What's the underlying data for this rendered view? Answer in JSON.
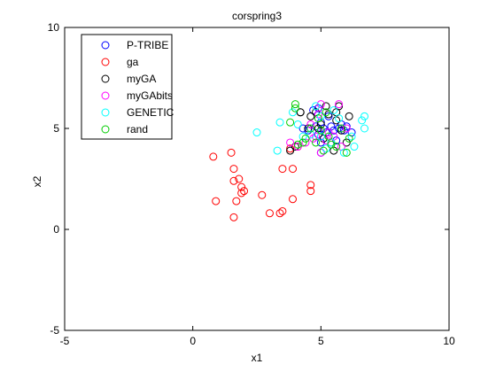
{
  "chart_data": {
    "type": "scatter",
    "title": "corspring3",
    "xlabel": "x1",
    "ylabel": "x2",
    "xlim": [
      -5,
      10
    ],
    "ylim": [
      -5,
      10
    ],
    "xticks": [
      -5,
      0,
      5,
      10
    ],
    "yticks": [
      -5,
      0,
      5,
      10
    ],
    "xtick_labels": [
      "-5",
      "0",
      "5",
      "10"
    ],
    "ytick_labels": [
      "-5",
      "0",
      "5",
      "10"
    ],
    "grid": false,
    "legend_position": "top-left",
    "marker": "circle",
    "series": [
      {
        "name": "P-TRIBE",
        "color": "#0000ff",
        "points": [
          [
            4.3,
            5.0
          ],
          [
            4.5,
            4.9
          ],
          [
            4.8,
            5.1
          ],
          [
            4.9,
            4.7
          ],
          [
            5.0,
            5.3
          ],
          [
            5.1,
            5.0
          ],
          [
            5.2,
            4.8
          ],
          [
            5.4,
            5.1
          ],
          [
            5.5,
            4.9
          ],
          [
            5.7,
            5.0
          ],
          [
            5.8,
            5.2
          ],
          [
            5.9,
            4.9
          ],
          [
            6.0,
            5.1
          ],
          [
            6.2,
            4.8
          ],
          [
            5.0,
            4.3
          ],
          [
            5.3,
            5.6
          ],
          [
            4.7,
            5.9
          ],
          [
            5.6,
            4.4
          ],
          [
            4.9,
            6.0
          ],
          [
            5.0,
            3.8
          ]
        ]
      },
      {
        "name": "ga",
        "color": "#ff0000",
        "points": [
          [
            0.8,
            3.6
          ],
          [
            0.9,
            1.4
          ],
          [
            1.5,
            3.8
          ],
          [
            1.6,
            3.0
          ],
          [
            1.6,
            2.4
          ],
          [
            1.7,
            1.4
          ],
          [
            1.6,
            0.6
          ],
          [
            1.8,
            2.5
          ],
          [
            1.9,
            2.1
          ],
          [
            1.9,
            1.8
          ],
          [
            2.0,
            1.9
          ],
          [
            2.7,
            1.7
          ],
          [
            3.0,
            0.8
          ],
          [
            3.4,
            0.8
          ],
          [
            3.5,
            0.9
          ],
          [
            3.5,
            3.0
          ],
          [
            3.9,
            1.5
          ],
          [
            3.9,
            3.0
          ],
          [
            4.6,
            2.2
          ],
          [
            4.6,
            1.9
          ],
          [
            4.1,
            4.1
          ],
          [
            3.8,
            4.0
          ]
        ]
      },
      {
        "name": "myGA",
        "color": "#000000",
        "points": [
          [
            3.8,
            3.9
          ],
          [
            4.0,
            4.1
          ],
          [
            4.2,
            5.8
          ],
          [
            4.6,
            5.6
          ],
          [
            4.8,
            5.8
          ],
          [
            4.9,
            5.0
          ],
          [
            5.1,
            4.5
          ],
          [
            5.2,
            6.1
          ],
          [
            5.3,
            5.7
          ],
          [
            5.4,
            4.3
          ],
          [
            5.5,
            3.9
          ],
          [
            5.6,
            5.4
          ],
          [
            5.6,
            5.8
          ],
          [
            5.7,
            6.1
          ],
          [
            5.8,
            4.9
          ],
          [
            6.0,
            4.3
          ],
          [
            6.1,
            5.6
          ],
          [
            4.2,
            5.8
          ],
          [
            4.5,
            5.0
          ],
          [
            5.0,
            5.2
          ]
        ]
      },
      {
        "name": "myGAbits",
        "color": "#ff00ff",
        "points": [
          [
            3.8,
            4.3
          ],
          [
            4.1,
            4.1
          ],
          [
            4.4,
            4.3
          ],
          [
            4.7,
            4.5
          ],
          [
            4.8,
            4.6
          ],
          [
            4.9,
            5.7
          ],
          [
            5.0,
            3.8
          ],
          [
            5.2,
            4.4
          ],
          [
            5.3,
            4.8
          ],
          [
            5.5,
            4.6
          ],
          [
            5.7,
            6.2
          ],
          [
            5.8,
            4.1
          ],
          [
            6.0,
            5.0
          ],
          [
            5.0,
            6.2
          ],
          [
            4.6,
            5.2
          ]
        ]
      },
      {
        "name": "GENETIC",
        "color": "#00ffff",
        "points": [
          [
            2.5,
            4.8
          ],
          [
            3.3,
            3.9
          ],
          [
            3.4,
            5.3
          ],
          [
            3.9,
            5.8
          ],
          [
            4.1,
            5.2
          ],
          [
            4.3,
            4.6
          ],
          [
            4.6,
            4.7
          ],
          [
            5.0,
            4.6
          ],
          [
            5.2,
            4.0
          ],
          [
            5.4,
            4.3
          ],
          [
            5.5,
            5.9
          ],
          [
            5.9,
            3.8
          ],
          [
            6.2,
            4.6
          ],
          [
            6.3,
            4.1
          ],
          [
            6.6,
            5.4
          ],
          [
            6.7,
            5.6
          ],
          [
            6.7,
            5.0
          ],
          [
            4.8,
            6.1
          ],
          [
            5.0,
            5.6
          ],
          [
            5.7,
            5.5
          ]
        ]
      },
      {
        "name": "rand",
        "color": "#00cc00",
        "points": [
          [
            3.8,
            5.3
          ],
          [
            4.0,
            6.2
          ],
          [
            4.0,
            6.0
          ],
          [
            4.1,
            4.2
          ],
          [
            4.3,
            4.3
          ],
          [
            4.4,
            4.5
          ],
          [
            4.6,
            5.0
          ],
          [
            4.9,
            5.5
          ],
          [
            5.0,
            4.9
          ],
          [
            5.1,
            3.9
          ],
          [
            5.3,
            4.6
          ],
          [
            5.4,
            4.2
          ],
          [
            5.6,
            4.1
          ],
          [
            5.8,
            5.0
          ],
          [
            6.0,
            3.8
          ],
          [
            6.1,
            4.5
          ],
          [
            5.2,
            5.8
          ],
          [
            4.8,
            4.3
          ]
        ]
      }
    ]
  }
}
